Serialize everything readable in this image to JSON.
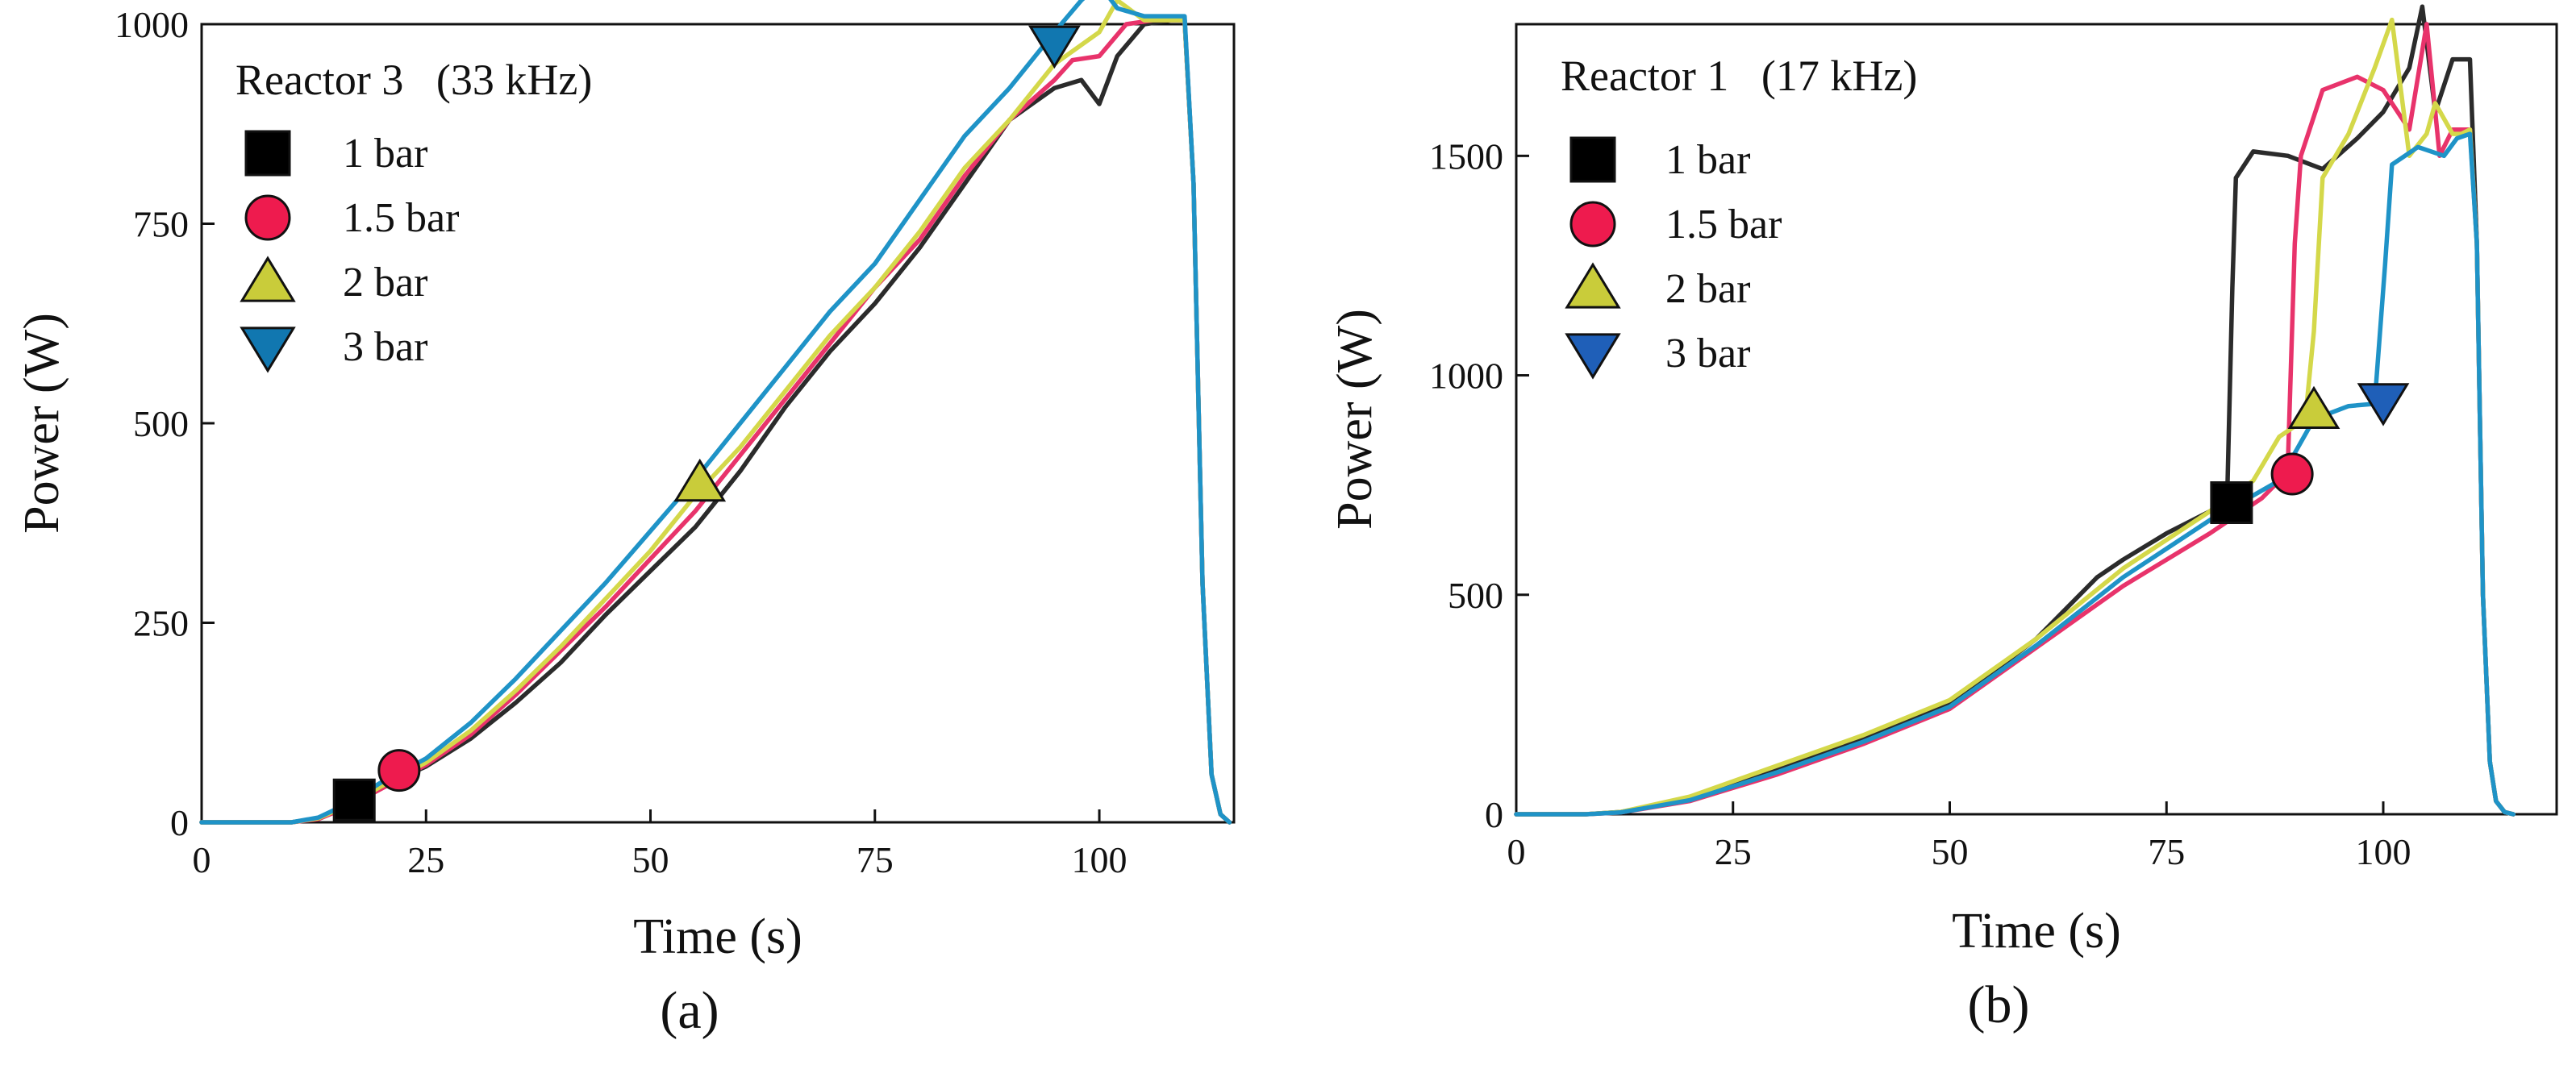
{
  "chart_data": [
    {
      "type": "line",
      "panel": "(a)",
      "legend_title": "Reactor 3   (33 kHz)",
      "xlabel": "Time (s)",
      "ylabel": "Power (W)",
      "xlim": [
        0,
        115
      ],
      "ylim": [
        0,
        1000
      ],
      "xticks": [
        0,
        25,
        50,
        75,
        100
      ],
      "yticks": [
        0,
        250,
        500,
        750,
        1000
      ],
      "legend_position": "top-left",
      "series": [
        {
          "name": "1 bar",
          "color": "#2b2b2b",
          "marker": "square",
          "marker_color": "#000000",
          "marker_point": [
            17,
            28
          ],
          "x": [
            0,
            10,
            13,
            16,
            20,
            25,
            30,
            35,
            40,
            45,
            50,
            55,
            60,
            65,
            70,
            75,
            80,
            85,
            90,
            95,
            98,
            100,
            102,
            105,
            108,
            109.5,
            110.5,
            111.5,
            112.5,
            113.5,
            114.5
          ],
          "y": [
            0,
            0,
            5,
            20,
            45,
            70,
            105,
            150,
            200,
            260,
            315,
            370,
            440,
            520,
            590,
            650,
            720,
            800,
            880,
            920,
            930,
            900,
            960,
            1000,
            1005,
            1005,
            800,
            300,
            60,
            10,
            0
          ]
        },
        {
          "name": "1.5 bar",
          "color": "#e8336b",
          "marker": "circle",
          "marker_color": "#ee1b4e",
          "marker_point": [
            22,
            65
          ],
          "x": [
            0,
            10,
            13,
            16,
            20,
            25,
            30,
            35,
            40,
            45,
            50,
            55,
            60,
            65,
            70,
            75,
            80,
            85,
            90,
            95,
            97,
            100,
            103,
            106,
            109.5,
            110.5,
            111.5,
            112.5,
            113.5,
            114.5
          ],
          "y": [
            0,
            0,
            4,
            18,
            42,
            72,
            110,
            160,
            215,
            270,
            330,
            390,
            460,
            530,
            600,
            670,
            730,
            810,
            880,
            930,
            955,
            960,
            1000,
            1005,
            1005,
            800,
            300,
            60,
            10,
            0
          ]
        },
        {
          "name": "2 bar",
          "color": "#d4d84a",
          "marker": "triangle-up",
          "marker_color": "#c9cc3a",
          "marker_point": [
            55.5,
            425
          ],
          "x": [
            0,
            10,
            13,
            16,
            20,
            25,
            30,
            35,
            40,
            45,
            50,
            55,
            60,
            65,
            70,
            75,
            80,
            85,
            90,
            95,
            100,
            102,
            105,
            109.5,
            110.5,
            111.5,
            112.5,
            113.5,
            114.5
          ],
          "y": [
            0,
            0,
            5,
            20,
            45,
            75,
            115,
            165,
            220,
            280,
            340,
            410,
            470,
            540,
            610,
            670,
            740,
            820,
            880,
            950,
            990,
            1030,
            1005,
            1005,
            800,
            300,
            60,
            10,
            0
          ]
        },
        {
          "name": "3 bar",
          "color": "#1f93c7",
          "marker": "triangle-down",
          "marker_color": "#1177b0",
          "marker_point": [
            95,
            975
          ],
          "x": [
            0,
            10,
            13,
            16,
            20,
            25,
            30,
            35,
            40,
            45,
            50,
            55,
            60,
            65,
            70,
            75,
            80,
            85,
            90,
            95,
            98,
            100,
            102,
            105,
            109.5,
            110.5,
            111.5,
            112.5,
            113.5,
            114.5
          ],
          "y": [
            0,
            0,
            6,
            22,
            50,
            80,
            125,
            180,
            240,
            300,
            365,
            430,
            500,
            570,
            640,
            700,
            780,
            860,
            920,
            990,
            1030,
            1050,
            1020,
            1010,
            1010,
            800,
            300,
            60,
            10,
            0
          ]
        }
      ]
    },
    {
      "type": "line",
      "panel": "(b)",
      "legend_title": "Reactor 1   (17 kHz)",
      "xlabel": "Time (s)",
      "ylabel": "Power (W)",
      "xlim": [
        0,
        120
      ],
      "ylim": [
        0,
        1800
      ],
      "xticks": [
        0,
        25,
        50,
        75,
        100
      ],
      "yticks": [
        0,
        500,
        1000,
        1500
      ],
      "legend_position": "top-left",
      "series": [
        {
          "name": "1 bar",
          "color": "#2b2b2b",
          "marker": "square",
          "marker_color": "#000000",
          "marker_point": [
            82.5,
            710
          ],
          "x": [
            0,
            8,
            12,
            20,
            30,
            40,
            50,
            60,
            67,
            70,
            75,
            80,
            82,
            82.6,
            83,
            85,
            89,
            93,
            97,
            100,
            103,
            104.5,
            106,
            108,
            110,
            110.8,
            111.5,
            112.3,
            113,
            114,
            115
          ],
          "y": [
            0,
            0,
            5,
            35,
            100,
            170,
            250,
            400,
            540,
            580,
            640,
            690,
            720,
            1200,
            1450,
            1510,
            1500,
            1470,
            1540,
            1600,
            1700,
            1840,
            1600,
            1720,
            1720,
            1300,
            500,
            120,
            30,
            5,
            0
          ]
        },
        {
          "name": "1.5 bar",
          "color": "#e8336b",
          "marker": "circle",
          "marker_color": "#ee1b4e",
          "marker_point": [
            89.5,
            775
          ],
          "x": [
            0,
            8,
            12,
            20,
            30,
            40,
            50,
            60,
            70,
            80,
            86,
            88,
            89,
            89.8,
            90.5,
            93,
            97,
            100,
            103,
            105,
            106.5,
            108,
            110,
            110.8,
            111.5,
            112.3,
            113,
            114,
            115
          ],
          "y": [
            0,
            0,
            4,
            30,
            90,
            160,
            240,
            380,
            520,
            640,
            720,
            760,
            800,
            1300,
            1500,
            1650,
            1680,
            1650,
            1560,
            1800,
            1500,
            1560,
            1560,
            1300,
            500,
            120,
            30,
            5,
            0
          ]
        },
        {
          "name": "2 bar",
          "color": "#d4d84a",
          "marker": "triangle-up",
          "marker_color": "#c9cc3a",
          "marker_point": [
            92,
            920
          ],
          "x": [
            0,
            8,
            12,
            20,
            30,
            40,
            50,
            60,
            70,
            80,
            85,
            88,
            91,
            92,
            93,
            96,
            99,
            101,
            103,
            105,
            106,
            108,
            109,
            110,
            110.8,
            111.5,
            112.3,
            113,
            114,
            115
          ],
          "y": [
            0,
            0,
            5,
            40,
            110,
            180,
            260,
            400,
            560,
            690,
            760,
            860,
            900,
            1100,
            1450,
            1550,
            1700,
            1810,
            1500,
            1550,
            1620,
            1550,
            1550,
            1560,
            1300,
            500,
            120,
            30,
            5,
            0
          ]
        },
        {
          "name": "3 bar",
          "color": "#1f93c7",
          "marker": "triangle-down",
          "marker_color": "#1f5fb8",
          "marker_point": [
            100,
            940
          ],
          "x": [
            0,
            8,
            12,
            20,
            30,
            40,
            50,
            60,
            70,
            80,
            88,
            92,
            96,
            99,
            100.2,
            101,
            104,
            107,
            108.5,
            110,
            110.8,
            111.5,
            112.3,
            113,
            114,
            115
          ],
          "y": [
            0,
            0,
            4,
            32,
            95,
            165,
            245,
            385,
            540,
            670,
            760,
            900,
            930,
            935,
            1250,
            1480,
            1520,
            1500,
            1540,
            1550,
            1300,
            500,
            120,
            30,
            5,
            0
          ]
        }
      ]
    }
  ]
}
